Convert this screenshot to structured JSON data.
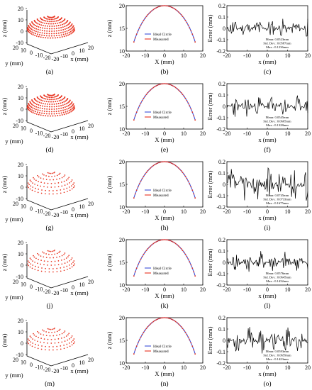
{
  "colors": {
    "points": "#e8321e",
    "ideal_line": "#3b4fd8",
    "measured_line": "#e8321e",
    "error_line": "#000000",
    "axis": "#000000"
  },
  "chart_data": [
    {
      "type": "scatter",
      "dims": "3d",
      "panel_label": "(a)",
      "zlabel": "z (mm)",
      "ylabel": "y (mm)",
      "xlabel": "x (mm)",
      "z_ticks": [
        "20",
        "10",
        "0",
        "-10"
      ],
      "y_ticks": [
        "20",
        "10",
        "0",
        "-10",
        "-20"
      ],
      "x_ticks": [
        "-20",
        "-10",
        "0",
        "10",
        "20"
      ],
      "sphere_radius_mm": 20,
      "density": "dense"
    },
    {
      "type": "line",
      "panel_label": "(b)",
      "xlabel": "X (mm)",
      "ylabel": "z (mm)",
      "xlim": [
        -20,
        20
      ],
      "ylim": [
        10,
        20
      ],
      "x_ticks": [
        "-20",
        "-10",
        "0",
        "10",
        "20"
      ],
      "y_ticks": [
        "20",
        "15",
        "10"
      ],
      "legend": [
        "Ideal Circle",
        "Measured"
      ],
      "series": [
        {
          "name": "Ideal Circle",
          "radius": 20,
          "x_range": [
            -16,
            16
          ]
        },
        {
          "name": "Measured",
          "radius": 20,
          "x_range": [
            -16,
            16
          ]
        }
      ]
    },
    {
      "type": "line",
      "panel_label": "(c)",
      "xlabel": "x (mm)",
      "ylabel": "Error (mm)",
      "xlim": [
        -20,
        20
      ],
      "ylim": [
        -0.2,
        0.2
      ],
      "x_ticks": [
        "-20",
        "-10",
        "0",
        "10",
        "20"
      ],
      "y_ticks": [
        "0.2",
        "0.1",
        "0",
        "-0.1",
        "-0.2"
      ],
      "stats": [
        "Mean: 0.0523mm",
        "Std. Dev.: 0.0587mm",
        "Max.: 0.1236mm"
      ],
      "series": [
        {
          "name": "",
          "x_range": [
            -20,
            20
          ],
          "amplitude": 0.09,
          "seed": 11
        }
      ]
    },
    {
      "type": "scatter",
      "dims": "3d",
      "panel_label": "(d)",
      "zlabel": "z (mm)",
      "ylabel": "y (mm)",
      "xlabel": "x (mm)",
      "z_ticks": [
        "20",
        "10",
        "0",
        "-10"
      ],
      "y_ticks": [
        "20",
        "10",
        "0",
        "-10",
        "-20"
      ],
      "x_ticks": [
        "-20",
        "-10",
        "0",
        "10",
        "20"
      ],
      "sphere_radius_mm": 20,
      "density": "dense"
    },
    {
      "type": "line",
      "panel_label": "(e)",
      "xlabel": "X (mm)",
      "ylabel": "z (mm)",
      "xlim": [
        -20,
        20
      ],
      "ylim": [
        10,
        20
      ],
      "x_ticks": [
        "-20",
        "-10",
        "0",
        "10",
        "20"
      ],
      "y_ticks": [
        "20",
        "15",
        "10"
      ],
      "legend": [
        "Ideal Circle",
        "Measured"
      ],
      "series": [
        {
          "name": "Ideal Circle",
          "radius": 20,
          "x_range": [
            -16,
            16
          ]
        },
        {
          "name": "Measured",
          "radius": 20,
          "x_range": [
            -16,
            16
          ]
        }
      ]
    },
    {
      "type": "line",
      "panel_label": "(f)",
      "xlabel": "x (mm)",
      "ylabel": "Error (mm)",
      "xlim": [
        -20,
        20
      ],
      "ylim": [
        -0.2,
        0.2
      ],
      "x_ticks": [
        "-20",
        "-10",
        "0",
        "10",
        "20"
      ],
      "y_ticks": [
        "0.2",
        "0.1",
        "0",
        "-0.1",
        "-0.2"
      ],
      "stats": [
        "Mean: 0.0545mm",
        "Std. Dev.: 0.0605mm",
        "Max.: 0.1328mm"
      ],
      "series": [
        {
          "name": "",
          "x_range": [
            -20,
            20
          ],
          "amplitude": 0.1,
          "seed": 23
        }
      ]
    },
    {
      "type": "scatter",
      "dims": "3d",
      "panel_label": "(g)",
      "zlabel": "z (mm)",
      "ylabel": "y (mm)",
      "xlabel": "x (mm)",
      "z_ticks": [
        "20",
        "10",
        "0",
        "-10"
      ],
      "y_ticks": [
        "20",
        "10",
        "0",
        "-10",
        "-20"
      ],
      "x_ticks": [
        "-20",
        "-10",
        "0",
        "10",
        "20"
      ],
      "sphere_radius_mm": 20,
      "density": "sparse"
    },
    {
      "type": "line",
      "panel_label": "(h)",
      "xlabel": "X (mm)",
      "ylabel": "z (mm)",
      "xlim": [
        -20,
        20
      ],
      "ylim": [
        10,
        20
      ],
      "x_ticks": [
        "-20",
        "-10",
        "0",
        "10",
        "20"
      ],
      "y_ticks": [
        "20",
        "15",
        "10"
      ],
      "legend": [
        "Ideal Circle",
        "Measured"
      ],
      "series": [
        {
          "name": "Ideal Circle",
          "radius": 20,
          "x_range": [
            -16,
            16
          ]
        },
        {
          "name": "Measured",
          "radius": 20,
          "x_range": [
            -16,
            16
          ]
        }
      ]
    },
    {
      "type": "line",
      "panel_label": "(i)",
      "xlabel": "x (mm)",
      "ylabel": "Error (mm)",
      "xlim": [
        -20,
        20
      ],
      "ylim": [
        -0.2,
        0.2
      ],
      "x_ticks": [
        "-20",
        "-10",
        "0",
        "10",
        "20"
      ],
      "y_ticks": [
        "0.2",
        "0.1",
        "0",
        "-0.1",
        "-0.2"
      ],
      "stats": [
        "Mean: 0.0745mm",
        "Std. Dev.: 0.0733mm",
        "Max.: 0.1675mm"
      ],
      "series": [
        {
          "name": "",
          "x_range": [
            -20,
            20
          ],
          "amplitude": 0.15,
          "seed": 37
        }
      ]
    },
    {
      "type": "scatter",
      "dims": "3d",
      "panel_label": "(j)",
      "zlabel": "z (mm)",
      "ylabel": "y (mm)",
      "xlabel": "x (mm)",
      "z_ticks": [
        "20",
        "10",
        "0",
        "-10"
      ],
      "y_ticks": [
        "20",
        "10",
        "0",
        "-10",
        "-20"
      ],
      "x_ticks": [
        "-20",
        "-10",
        "0",
        "10",
        "20"
      ],
      "sphere_radius_mm": 20,
      "density": "sparse"
    },
    {
      "type": "line",
      "panel_label": "(k)",
      "xlabel": "X (mm)",
      "ylabel": "z (mm)",
      "xlim": [
        -20,
        20
      ],
      "ylim": [
        10,
        20
      ],
      "x_ticks": [
        "-20",
        "-10",
        "0",
        "10",
        "20"
      ],
      "y_ticks": [
        "20",
        "15",
        "10"
      ],
      "legend": [
        "Ideal Circle",
        "Measured"
      ],
      "series": [
        {
          "name": "Ideal Circle",
          "radius": 20,
          "x_range": [
            -16,
            16
          ]
        },
        {
          "name": "Measured",
          "radius": 20,
          "x_range": [
            -16,
            16
          ]
        }
      ]
    },
    {
      "type": "line",
      "panel_label": "(l)",
      "xlabel": "x (mm)",
      "ylabel": "Error (mm)",
      "xlim": [
        -20,
        20
      ],
      "ylim": [
        -0.2,
        0.2
      ],
      "x_ticks": [
        "-20",
        "-10",
        "0",
        "10",
        "20"
      ],
      "y_ticks": [
        "0.2",
        "0.1",
        "0",
        "-0.1",
        "-0.2"
      ],
      "stats": [
        "Mean: 0.0576mm",
        "Std. Dev.: 0.0645mm",
        "Max.: 0.1432mm"
      ],
      "series": [
        {
          "name": "",
          "x_range": [
            -20,
            20
          ],
          "amplitude": 0.1,
          "seed": 41
        }
      ]
    },
    {
      "type": "scatter",
      "dims": "3d",
      "panel_label": "(m)",
      "zlabel": "(mm)",
      "ylabel": "y (mm)",
      "xlabel": "x (mm)",
      "z_ticks": [
        "20",
        "10",
        "0",
        "-10"
      ],
      "y_ticks": [
        "20",
        "10",
        "0",
        "-10",
        "-20"
      ],
      "x_ticks": [
        "-20",
        "-10",
        "0",
        "10",
        "20"
      ],
      "sphere_radius_mm": 20,
      "density": "sparse"
    },
    {
      "type": "line",
      "panel_label": "(n)",
      "xlabel": "X (mm)",
      "ylabel": "z (mm)",
      "xlim": [
        -20,
        20
      ],
      "ylim": [
        10,
        20
      ],
      "x_ticks": [
        "-20",
        "-10",
        "0",
        "10",
        "20"
      ],
      "y_ticks": [
        "20",
        "15",
        "10"
      ],
      "legend": [
        "Ideal Circle",
        "Measured"
      ],
      "series": [
        {
          "name": "Ideal Circle",
          "radius": 20,
          "x_range": [
            -16,
            16
          ]
        },
        {
          "name": "Measured",
          "radius": 20,
          "x_range": [
            -16,
            16
          ]
        }
      ]
    },
    {
      "type": "line",
      "panel_label": "(o)",
      "xlabel": "x (mm)",
      "ylabel": "Error (mm)",
      "xlim": [
        -20,
        20
      ],
      "ylim": [
        -0.2,
        0.2
      ],
      "x_ticks": [
        "-20",
        "-10",
        "0",
        "10",
        "20"
      ],
      "y_ticks": [
        "0.2",
        "0.1",
        "0",
        "-0.1",
        "-0.2"
      ],
      "stats": [
        "Mean: 0.0593mm",
        "Std. Dev.: 0.0659mm",
        "Max.: 0.1423mm"
      ],
      "series": [
        {
          "name": "",
          "x_range": [
            -20,
            20
          ],
          "amplitude": 0.12,
          "seed": 53
        }
      ]
    }
  ]
}
